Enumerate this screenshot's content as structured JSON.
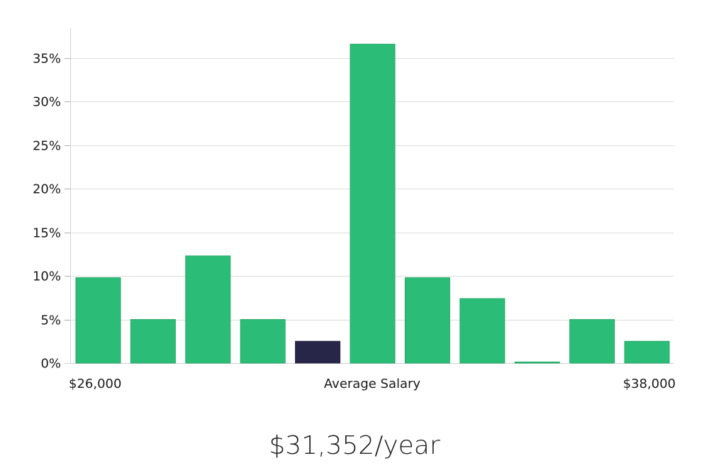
{
  "colors": {
    "bar": "#2bbd77",
    "bar_stroke": "#22a866",
    "highlight": "#272548",
    "grid": "#dcdcdc",
    "text": "#1a1a1a"
  },
  "chart_data": {
    "type": "bar",
    "title": "",
    "xlabel": "Average Salary",
    "ylabel": "",
    "x_start_label": "$26,000",
    "x_end_label": "$38,000",
    "ylim": [
      0,
      38
    ],
    "yticks": [
      0,
      5,
      10,
      15,
      20,
      25,
      30,
      35
    ],
    "ytick_labels": [
      "0%",
      "5%",
      "10%",
      "15%",
      "20%",
      "25%",
      "30%",
      "35%"
    ],
    "values": [
      9.8,
      5.0,
      12.3,
      5.0,
      2.5,
      36.6,
      9.8,
      7.4,
      0.1,
      5.0,
      2.5
    ],
    "highlight_index": 4,
    "grid": true
  },
  "footer": {
    "salary_text": "$31,352/year"
  }
}
